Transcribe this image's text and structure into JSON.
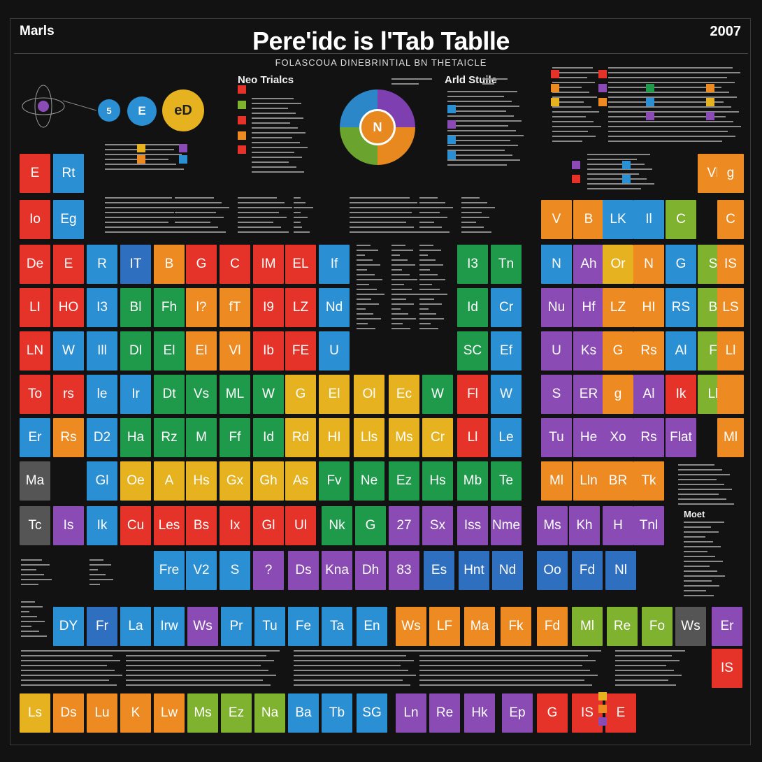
{
  "header": {
    "left_label": "Marls",
    "title": "Pere'idc is l'Tab Tablle",
    "subtitle": "FOLASCOUA DINEBRINTIAL BN THETAICLE",
    "year": "2007"
  },
  "sections": {
    "left": "Neo Trialcs",
    "right": "Arld Stuile",
    "bottom_right": "Moet"
  },
  "diagram": {
    "small_circle": "5",
    "mid_circle": "E",
    "big_circle": "eD",
    "wheel_core": "N"
  },
  "colors": {
    "red": "#e5332a",
    "orange": "#ee8a22",
    "yellow": "#e7b21f",
    "green": "#1f9a4b",
    "lime": "#7fb22f",
    "blue": "#2b8fd3",
    "dblue": "#2f6fbf",
    "purple": "#8a4bb4",
    "gray": "#555555"
  },
  "cells": [
    {
      "s": "E",
      "c": "red"
    },
    {
      "s": "Rt",
      "c": "blue"
    },
    {
      "s": "Vl",
      "c": "orange"
    },
    {
      "s": "g",
      "c": "orange"
    },
    {
      "s": "Io",
      "c": "red"
    },
    {
      "s": "Eg",
      "c": "blue"
    },
    {
      "s": "V",
      "c": "orange"
    },
    {
      "s": "B",
      "c": "orange"
    },
    {
      "s": "LK",
      "c": "blue"
    },
    {
      "s": "Il",
      "c": "blue"
    },
    {
      "s": "C",
      "c": "lime"
    },
    {
      "s": "C",
      "c": "orange"
    },
    {
      "s": "De",
      "c": "red"
    },
    {
      "s": "E",
      "c": "red"
    },
    {
      "s": "R",
      "c": "blue"
    },
    {
      "s": "IT",
      "c": "dblue"
    },
    {
      "s": "B",
      "c": "orange"
    },
    {
      "s": "G",
      "c": "red"
    },
    {
      "s": "C",
      "c": "red"
    },
    {
      "s": "IM",
      "c": "red"
    },
    {
      "s": "EL",
      "c": "red"
    },
    {
      "s": "If",
      "c": "blue"
    },
    {
      "s": "I3",
      "c": "green"
    },
    {
      "s": "Tn",
      "c": "green"
    },
    {
      "s": "N",
      "c": "blue"
    },
    {
      "s": "Ah",
      "c": "purple"
    },
    {
      "s": "Or",
      "c": "yellow"
    },
    {
      "s": "N",
      "c": "orange"
    },
    {
      "s": "G",
      "c": "blue"
    },
    {
      "s": "S",
      "c": "lime"
    },
    {
      "s": "IS",
      "c": "orange"
    },
    {
      "s": "LI",
      "c": "red"
    },
    {
      "s": "HO",
      "c": "red"
    },
    {
      "s": "I3",
      "c": "blue"
    },
    {
      "s": "Bl",
      "c": "green"
    },
    {
      "s": "Fh",
      "c": "green"
    },
    {
      "s": "l?",
      "c": "orange"
    },
    {
      "s": "fT",
      "c": "orange"
    },
    {
      "s": "I9",
      "c": "red"
    },
    {
      "s": "LZ",
      "c": "red"
    },
    {
      "s": "Nd",
      "c": "blue"
    },
    {
      "s": "Id",
      "c": "green"
    },
    {
      "s": "Cr",
      "c": "blue"
    },
    {
      "s": "Nu",
      "c": "purple"
    },
    {
      "s": "Hf",
      "c": "purple"
    },
    {
      "s": "LZ",
      "c": "orange"
    },
    {
      "s": "HI",
      "c": "orange"
    },
    {
      "s": "RS",
      "c": "blue"
    },
    {
      "s": "B",
      "c": "lime"
    },
    {
      "s": "LS",
      "c": "orange"
    },
    {
      "s": "LN",
      "c": "red"
    },
    {
      "s": "W",
      "c": "blue"
    },
    {
      "s": "Ill",
      "c": "blue"
    },
    {
      "s": "Dl",
      "c": "green"
    },
    {
      "s": "El",
      "c": "green"
    },
    {
      "s": "El",
      "c": "orange"
    },
    {
      "s": "Vl",
      "c": "orange"
    },
    {
      "s": "Ib",
      "c": "red"
    },
    {
      "s": "FE",
      "c": "red"
    },
    {
      "s": "U",
      "c": "blue"
    },
    {
      "s": "SC",
      "c": "green"
    },
    {
      "s": "Ef",
      "c": "blue"
    },
    {
      "s": "U",
      "c": "purple"
    },
    {
      "s": "Ks",
      "c": "purple"
    },
    {
      "s": "G",
      "c": "orange"
    },
    {
      "s": "Rs",
      "c": "orange"
    },
    {
      "s": "Al",
      "c": "blue"
    },
    {
      "s": "F",
      "c": "lime"
    },
    {
      "s": "Ll",
      "c": "orange"
    },
    {
      "s": "To",
      "c": "red"
    },
    {
      "s": "rs",
      "c": "red"
    },
    {
      "s": "le",
      "c": "blue"
    },
    {
      "s": "Ir",
      "c": "blue"
    },
    {
      "s": "Dt",
      "c": "green"
    },
    {
      "s": "Vs",
      "c": "green"
    },
    {
      "s": "ML",
      "c": "green"
    },
    {
      "s": "W",
      "c": "green"
    },
    {
      "s": "G",
      "c": "yellow"
    },
    {
      "s": "El",
      "c": "yellow"
    },
    {
      "s": "Ol",
      "c": "yellow"
    },
    {
      "s": "Ec",
      "c": "yellow"
    },
    {
      "s": "W",
      "c": "green"
    },
    {
      "s": "Fl",
      "c": "red"
    },
    {
      "s": "W",
      "c": "blue"
    },
    {
      "s": "S",
      "c": "purple"
    },
    {
      "s": "ER",
      "c": "purple"
    },
    {
      "s": "g",
      "c": "orange"
    },
    {
      "s": "Al",
      "c": "purple"
    },
    {
      "s": "Ik",
      "c": "red"
    },
    {
      "s": "Ll",
      "c": "lime"
    },
    {
      "s": "",
      "c": "orange"
    },
    {
      "s": "Er",
      "c": "blue"
    },
    {
      "s": "Rs",
      "c": "orange"
    },
    {
      "s": "D2",
      "c": "blue"
    },
    {
      "s": "Ha",
      "c": "green"
    },
    {
      "s": "Rz",
      "c": "green"
    },
    {
      "s": "M",
      "c": "green"
    },
    {
      "s": "Ff",
      "c": "green"
    },
    {
      "s": "Id",
      "c": "green"
    },
    {
      "s": "Rd",
      "c": "yellow"
    },
    {
      "s": "HI",
      "c": "yellow"
    },
    {
      "s": "Lls",
      "c": "yellow"
    },
    {
      "s": "Ms",
      "c": "yellow"
    },
    {
      "s": "Cr",
      "c": "yellow"
    },
    {
      "s": "Ll",
      "c": "red"
    },
    {
      "s": "Le",
      "c": "blue"
    },
    {
      "s": "Tu",
      "c": "purple"
    },
    {
      "s": "He",
      "c": "purple"
    },
    {
      "s": "Xo",
      "c": "purple"
    },
    {
      "s": "Rs",
      "c": "purple"
    },
    {
      "s": "Flat",
      "c": "purple"
    },
    {
      "s": "Ml",
      "c": "orange"
    },
    {
      "s": "Ma",
      "c": "gray"
    },
    {
      "s": "Gl",
      "c": "blue"
    },
    {
      "s": "Oe",
      "c": "yellow"
    },
    {
      "s": "A",
      "c": "yellow"
    },
    {
      "s": "Hs",
      "c": "yellow"
    },
    {
      "s": "Gx",
      "c": "yellow"
    },
    {
      "s": "Gh",
      "c": "yellow"
    },
    {
      "s": "As",
      "c": "yellow"
    },
    {
      "s": "Fv",
      "c": "green"
    },
    {
      "s": "Ne",
      "c": "green"
    },
    {
      "s": "Ez",
      "c": "green"
    },
    {
      "s": "Hs",
      "c": "green"
    },
    {
      "s": "Mb",
      "c": "green"
    },
    {
      "s": "Te",
      "c": "green"
    },
    {
      "s": "Ml",
      "c": "orange"
    },
    {
      "s": "Lln",
      "c": "orange"
    },
    {
      "s": "BR",
      "c": "orange"
    },
    {
      "s": "Tk",
      "c": "orange"
    },
    {
      "s": "Tc",
      "c": "gray"
    },
    {
      "s": "Is",
      "c": "purple"
    },
    {
      "s": "Ik",
      "c": "blue"
    },
    {
      "s": "Cu",
      "c": "red"
    },
    {
      "s": "Les",
      "c": "red"
    },
    {
      "s": "Bs",
      "c": "red"
    },
    {
      "s": "Ix",
      "c": "red"
    },
    {
      "s": "Gl",
      "c": "red"
    },
    {
      "s": "Ul",
      "c": "red"
    },
    {
      "s": "Nk",
      "c": "green"
    },
    {
      "s": "G",
      "c": "green"
    },
    {
      "s": "27",
      "c": "purple"
    },
    {
      "s": "Sx",
      "c": "purple"
    },
    {
      "s": "Iss",
      "c": "purple"
    },
    {
      "s": "Nme",
      "c": "purple"
    },
    {
      "s": "Ms",
      "c": "purple"
    },
    {
      "s": "Kh",
      "c": "purple"
    },
    {
      "s": "H",
      "c": "purple"
    },
    {
      "s": "Tnl",
      "c": "purple"
    },
    {
      "s": "Fre",
      "c": "blue"
    },
    {
      "s": "V2",
      "c": "blue"
    },
    {
      "s": "S",
      "c": "blue"
    },
    {
      "s": "?",
      "c": "purple"
    },
    {
      "s": "Ds",
      "c": "purple"
    },
    {
      "s": "Kna",
      "c": "purple"
    },
    {
      "s": "Dh",
      "c": "purple"
    },
    {
      "s": "83",
      "c": "purple"
    },
    {
      "s": "Es",
      "c": "dblue"
    },
    {
      "s": "Hnt",
      "c": "dblue"
    },
    {
      "s": "Nd",
      "c": "dblue"
    },
    {
      "s": "Oo",
      "c": "dblue"
    },
    {
      "s": "Fd",
      "c": "dblue"
    },
    {
      "s": "Nl",
      "c": "dblue"
    },
    {
      "s": "DY",
      "c": "blue"
    },
    {
      "s": "Fr",
      "c": "dblue"
    },
    {
      "s": "La",
      "c": "blue"
    },
    {
      "s": "Irw",
      "c": "blue"
    },
    {
      "s": "Ws",
      "c": "purple"
    },
    {
      "s": "Pr",
      "c": "blue"
    },
    {
      "s": "Tu",
      "c": "blue"
    },
    {
      "s": "Fe",
      "c": "blue"
    },
    {
      "s": "Ta",
      "c": "blue"
    },
    {
      "s": "En",
      "c": "blue"
    },
    {
      "s": "Ws",
      "c": "orange"
    },
    {
      "s": "LF",
      "c": "orange"
    },
    {
      "s": "Ma",
      "c": "orange"
    },
    {
      "s": "Fk",
      "c": "orange"
    },
    {
      "s": "Fd",
      "c": "orange"
    },
    {
      "s": "Ml",
      "c": "lime"
    },
    {
      "s": "Re",
      "c": "lime"
    },
    {
      "s": "Fo",
      "c": "lime"
    },
    {
      "s": "Ws",
      "c": "gray"
    },
    {
      "s": "Er",
      "c": "purple"
    },
    {
      "s": "IS",
      "c": "red"
    },
    {
      "s": "Ls",
      "c": "yellow"
    },
    {
      "s": "Ds",
      "c": "orange"
    },
    {
      "s": "Lu",
      "c": "orange"
    },
    {
      "s": "K",
      "c": "orange"
    },
    {
      "s": "Lw",
      "c": "orange"
    },
    {
      "s": "Ms",
      "c": "lime"
    },
    {
      "s": "Ez",
      "c": "lime"
    },
    {
      "s": "Na",
      "c": "lime"
    },
    {
      "s": "Ba",
      "c": "blue"
    },
    {
      "s": "Tb",
      "c": "blue"
    },
    {
      "s": "SG",
      "c": "blue"
    },
    {
      "s": "Ln",
      "c": "purple"
    },
    {
      "s": "Re",
      "c": "purple"
    },
    {
      "s": "Hk",
      "c": "purple"
    },
    {
      "s": "Ep",
      "c": "purple"
    },
    {
      "s": "G",
      "c": "red"
    },
    {
      "s": "IS",
      "c": "red"
    },
    {
      "s": "E",
      "c": "red"
    }
  ]
}
